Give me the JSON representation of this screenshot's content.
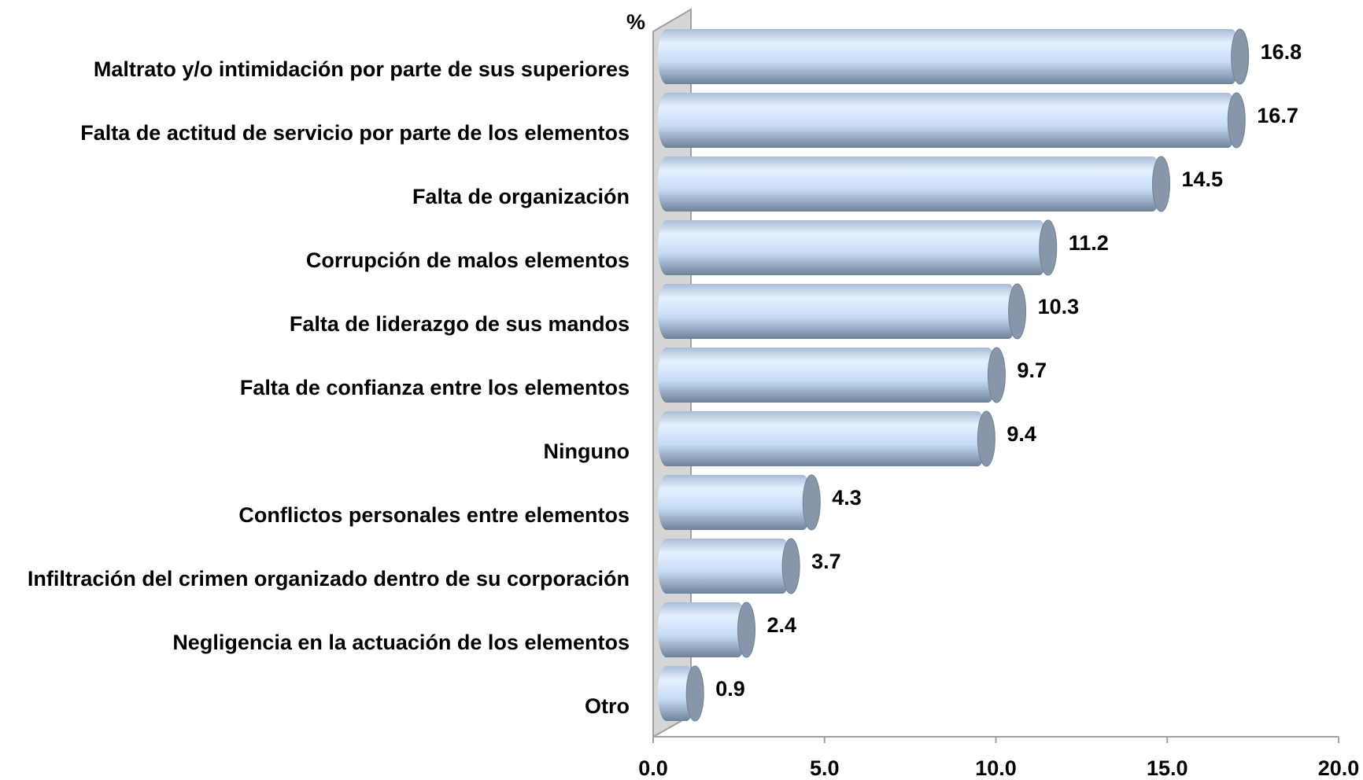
{
  "chart_data": {
    "type": "bar",
    "orientation": "horizontal",
    "axis_label": "%",
    "categories": [
      "Maltrato y/o intimidación por parte de sus superiores",
      "Falta de actitud de servicio por parte de los elementos",
      "Falta de organización",
      "Corrupción de malos elementos",
      "Falta de liderazgo de sus mandos",
      "Falta de confianza entre los elementos",
      "Ninguno",
      "Conflictos personales entre elementos",
      "Infiltración del crimen organizado dentro de su corporación",
      "Negligencia en la actuación de los elementos",
      "Otro"
    ],
    "values": [
      16.8,
      16.7,
      14.5,
      11.2,
      10.3,
      9.7,
      9.4,
      4.3,
      3.7,
      2.4,
      0.9
    ],
    "color": "#c6dcf5",
    "xlim": [
      0,
      20
    ],
    "xticks": [
      {
        "value": 0,
        "label": "0.0"
      },
      {
        "value": 5,
        "label": "5.0"
      },
      {
        "value": 10,
        "label": "10.0"
      },
      {
        "value": 15,
        "label": "15.0"
      },
      {
        "value": 20,
        "label": "20.0"
      }
    ]
  }
}
